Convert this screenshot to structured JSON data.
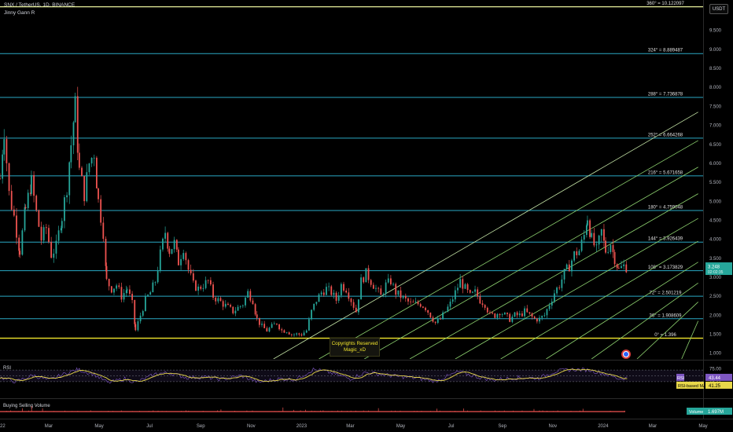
{
  "header": {
    "symbol": "SNX / TetherUS, 1D, BINANCE",
    "indicator": "Jinny Gann R",
    "currency": "USDT"
  },
  "colors": {
    "gann_level": "#2aa8c4",
    "top_level": "#e6ef9b",
    "zero_level": "#f2e52d",
    "fan": "#8fd470",
    "rsi_line": "#7e57c2",
    "rsi_ma": "#e8d84a",
    "volume": "#ef5350",
    "price_tag": "#26a69a"
  },
  "watermark": {
    "line1": "Copyrights Reserved",
    "line2": "Magic_xD"
  },
  "chart_data": [
    {
      "type": "candlestick",
      "title": "SNX / TetherUS, 1D, BINANCE",
      "y_ticks": [
        "10.000",
        "9.500",
        "9.000",
        "8.500",
        "8.000",
        "7.500",
        "7.000",
        "6.500",
        "6.000",
        "5.500",
        "5.000",
        "4.500",
        "4.000",
        "3.500",
        "3.000",
        "2.500",
        "2.000",
        "1.500",
        "1.000"
      ],
      "ylim": [
        0.85,
        10.3
      ],
      "x_ticks": [
        "2022",
        "Mar",
        "May",
        "Jul",
        "Sep",
        "Nov",
        "2023",
        "Mar",
        "May",
        "Jul",
        "Sep",
        "Nov",
        "2024",
        "Mar",
        "May"
      ],
      "xlim": [
        "2022-01-01",
        "2024-05-01"
      ],
      "last_price": "3.248",
      "countdown": "02:02:35",
      "gann_levels": [
        {
          "label": "360° = 10.122097",
          "value": 10.122097
        },
        {
          "label": "324° = 8.889487",
          "value": 8.889487
        },
        {
          "label": "288° = 7.736878",
          "value": 7.736878
        },
        {
          "label": "252° = 6.664268",
          "value": 6.664268
        },
        {
          "label": "216° = 5.671658",
          "value": 5.671658
        },
        {
          "label": "180° = 4.759048",
          "value": 4.759048
        },
        {
          "label": "144° = 3.926439",
          "value": 3.926439
        },
        {
          "label": "108° = 3.173829",
          "value": 3.173829
        },
        {
          "label": "72° = 2.501219",
          "value": 2.501219
        },
        {
          "label": "36° = 1.908609",
          "value": 1.908609
        },
        {
          "label": "0° = 1.396",
          "value": 1.396
        }
      ],
      "close_series": [
        [
          "2022-01-01",
          5.6
        ],
        [
          "2022-01-06",
          6.9
        ],
        [
          "2022-01-12",
          5.2
        ],
        [
          "2022-01-18",
          4.6
        ],
        [
          "2022-01-25",
          3.7
        ],
        [
          "2022-02-01",
          4.8
        ],
        [
          "2022-02-08",
          5.5
        ],
        [
          "2022-02-14",
          4.7
        ],
        [
          "2022-02-20",
          4.0
        ],
        [
          "2022-02-26",
          4.3
        ],
        [
          "2022-03-04",
          3.6
        ],
        [
          "2022-03-10",
          3.8
        ],
        [
          "2022-03-17",
          4.6
        ],
        [
          "2022-03-23",
          5.4
        ],
        [
          "2022-03-28",
          6.5
        ],
        [
          "2022-04-02",
          7.5
        ],
        [
          "2022-04-07",
          5.8
        ],
        [
          "2022-04-13",
          5.2
        ],
        [
          "2022-04-19",
          6.0
        ],
        [
          "2022-04-25",
          6.3
        ],
        [
          "2022-04-30",
          5.0
        ],
        [
          "2022-05-06",
          4.2
        ],
        [
          "2022-05-10",
          2.9
        ],
        [
          "2022-05-16",
          2.7
        ],
        [
          "2022-05-22",
          2.8
        ],
        [
          "2022-05-28",
          2.5
        ],
        [
          "2022-06-04",
          2.7
        ],
        [
          "2022-06-10",
          2.3
        ],
        [
          "2022-06-14",
          1.6
        ],
        [
          "2022-06-20",
          2.0
        ],
        [
          "2022-06-26",
          2.4
        ],
        [
          "2022-07-02",
          2.6
        ],
        [
          "2022-07-08",
          2.9
        ],
        [
          "2022-07-14",
          3.6
        ],
        [
          "2022-07-20",
          4.2
        ],
        [
          "2022-07-25",
          3.7
        ],
        [
          "2022-07-31",
          3.9
        ],
        [
          "2022-08-05",
          3.4
        ],
        [
          "2022-08-11",
          3.8
        ],
        [
          "2022-08-17",
          3.2
        ],
        [
          "2022-08-23",
          2.8
        ],
        [
          "2022-08-29",
          2.7
        ],
        [
          "2022-09-04",
          2.8
        ],
        [
          "2022-09-10",
          2.9
        ],
        [
          "2022-09-16",
          2.5
        ],
        [
          "2022-09-22",
          2.4
        ],
        [
          "2022-09-28",
          2.3
        ],
        [
          "2022-10-04",
          2.2
        ],
        [
          "2022-10-10",
          2.1
        ],
        [
          "2022-10-16",
          2.2
        ],
        [
          "2022-10-22",
          2.3
        ],
        [
          "2022-10-28",
          2.6
        ],
        [
          "2022-11-03",
          2.4
        ],
        [
          "2022-11-08",
          1.9
        ],
        [
          "2022-11-14",
          1.7
        ],
        [
          "2022-11-20",
          1.6
        ],
        [
          "2022-11-26",
          1.7
        ],
        [
          "2022-12-02",
          1.8
        ],
        [
          "2022-12-08",
          1.6
        ],
        [
          "2022-12-14",
          1.6
        ],
        [
          "2022-12-20",
          1.5
        ],
        [
          "2022-12-26",
          1.5
        ],
        [
          "2023-01-01",
          1.5
        ],
        [
          "2023-01-07",
          1.6
        ],
        [
          "2023-01-13",
          2.1
        ],
        [
          "2023-01-19",
          2.4
        ],
        [
          "2023-01-25",
          2.6
        ],
        [
          "2023-01-31",
          2.7
        ],
        [
          "2023-02-06",
          2.6
        ],
        [
          "2023-02-12",
          2.4
        ],
        [
          "2023-02-18",
          2.8
        ],
        [
          "2023-02-24",
          2.7
        ],
        [
          "2023-03-02",
          2.4
        ],
        [
          "2023-03-08",
          2.1
        ],
        [
          "2023-03-14",
          2.9
        ],
        [
          "2023-03-20",
          3.1
        ],
        [
          "2023-03-26",
          2.9
        ],
        [
          "2023-04-01",
          2.7
        ],
        [
          "2023-04-07",
          2.5
        ],
        [
          "2023-04-13",
          2.8
        ],
        [
          "2023-04-19",
          2.9
        ],
        [
          "2023-04-25",
          2.6
        ],
        [
          "2023-05-01",
          2.5
        ],
        [
          "2023-05-07",
          2.4
        ],
        [
          "2023-05-13",
          2.3
        ],
        [
          "2023-05-19",
          2.3
        ],
        [
          "2023-05-25",
          2.3
        ],
        [
          "2023-05-31",
          2.2
        ],
        [
          "2023-06-06",
          2.0
        ],
        [
          "2023-06-12",
          1.8
        ],
        [
          "2023-06-18",
          1.9
        ],
        [
          "2023-06-24",
          2.1
        ],
        [
          "2023-06-30",
          2.3
        ],
        [
          "2023-07-06",
          2.6
        ],
        [
          "2023-07-12",
          2.9
        ],
        [
          "2023-07-18",
          2.7
        ],
        [
          "2023-07-24",
          2.5
        ],
        [
          "2023-07-30",
          2.6
        ],
        [
          "2023-08-05",
          2.4
        ],
        [
          "2023-08-11",
          2.3
        ],
        [
          "2023-08-17",
          2.0
        ],
        [
          "2023-08-23",
          2.0
        ],
        [
          "2023-08-29",
          2.1
        ],
        [
          "2023-09-04",
          2.0
        ],
        [
          "2023-09-10",
          1.9
        ],
        [
          "2023-09-16",
          2.0
        ],
        [
          "2023-09-22",
          2.0
        ],
        [
          "2023-09-28",
          2.1
        ],
        [
          "2023-10-04",
          2.0
        ],
        [
          "2023-10-10",
          1.9
        ],
        [
          "2023-10-16",
          1.9
        ],
        [
          "2023-10-22",
          2.0
        ],
        [
          "2023-10-28",
          2.3
        ],
        [
          "2023-11-03",
          2.6
        ],
        [
          "2023-11-09",
          2.8
        ],
        [
          "2023-11-15",
          3.1
        ],
        [
          "2023-11-21",
          3.3
        ],
        [
          "2023-11-27",
          3.6
        ],
        [
          "2023-12-03",
          3.7
        ],
        [
          "2023-12-09",
          4.1
        ],
        [
          "2023-12-13",
          4.6
        ],
        [
          "2023-12-18",
          4.0
        ],
        [
          "2023-12-24",
          3.7
        ],
        [
          "2023-12-30",
          4.2
        ],
        [
          "2024-01-04",
          3.7
        ],
        [
          "2024-01-10",
          3.9
        ],
        [
          "2024-01-15",
          3.5
        ],
        [
          "2024-01-20",
          3.2
        ],
        [
          "2024-01-26",
          3.3
        ],
        [
          "2024-01-31",
          3.25
        ]
      ],
      "fan_lines": [
        [
          [
            "2022-11-28",
            0.85
          ],
          [
            "2024-04-25",
            7.35
          ]
        ],
        [
          [
            "2023-01-22",
            0.85
          ],
          [
            "2024-04-25",
            6.6
          ]
        ],
        [
          [
            "2023-03-18",
            0.85
          ],
          [
            "2024-04-25",
            5.9
          ]
        ],
        [
          [
            "2023-05-12",
            0.85
          ],
          [
            "2024-04-25",
            5.2
          ]
        ],
        [
          [
            "2023-07-06",
            0.85
          ],
          [
            "2024-04-25",
            4.55
          ]
        ],
        [
          [
            "2023-08-30",
            0.85
          ],
          [
            "2024-04-25",
            3.95
          ]
        ],
        [
          [
            "2023-10-24",
            0.85
          ],
          [
            "2024-04-25",
            3.4
          ]
        ],
        [
          [
            "2023-12-18",
            0.85
          ],
          [
            "2024-04-25",
            2.85
          ]
        ],
        [
          [
            "2024-02-11",
            0.85
          ],
          [
            "2024-04-25",
            2.35
          ]
        ],
        [
          [
            "2024-04-05",
            0.85
          ],
          [
            "2024-04-25",
            1.85
          ]
        ]
      ]
    },
    {
      "type": "line",
      "title": "RSI",
      "series": [
        {
          "name": "RSI",
          "last": "43.44"
        },
        {
          "name": "RSI-based MA",
          "last": "41.25"
        }
      ],
      "y_ticks": [
        "75.00",
        "50.00",
        "25.00"
      ],
      "ylim": [
        0,
        100
      ],
      "rsi_values": [
        [
          "2022-01-01",
          45
        ],
        [
          "2022-01-20",
          30
        ],
        [
          "2022-02-10",
          52
        ],
        [
          "2022-03-01",
          35
        ],
        [
          "2022-03-25",
          62
        ],
        [
          "2022-04-05",
          72
        ],
        [
          "2022-04-25",
          55
        ],
        [
          "2022-05-12",
          26
        ],
        [
          "2022-06-01",
          40
        ],
        [
          "2022-06-15",
          28
        ],
        [
          "2022-07-10",
          58
        ],
        [
          "2022-07-25",
          60
        ],
        [
          "2022-08-15",
          44
        ],
        [
          "2022-09-05",
          46
        ],
        [
          "2022-09-25",
          38
        ],
        [
          "2022-10-20",
          50
        ],
        [
          "2022-11-10",
          28
        ],
        [
          "2022-12-05",
          40
        ],
        [
          "2022-12-25",
          38
        ],
        [
          "2023-01-15",
          72
        ],
        [
          "2023-02-01",
          64
        ],
        [
          "2023-03-01",
          40
        ],
        [
          "2023-03-20",
          62
        ],
        [
          "2023-04-20",
          50
        ],
        [
          "2023-05-20",
          42
        ],
        [
          "2023-06-12",
          32
        ],
        [
          "2023-07-10",
          64
        ],
        [
          "2023-07-30",
          48
        ],
        [
          "2023-08-20",
          36
        ],
        [
          "2023-09-20",
          44
        ],
        [
          "2023-10-15",
          42
        ],
        [
          "2023-11-05",
          66
        ],
        [
          "2023-11-25",
          72
        ],
        [
          "2023-12-15",
          70
        ],
        [
          "2024-01-05",
          55
        ],
        [
          "2024-01-20",
          40
        ],
        [
          "2024-01-31",
          43.44
        ]
      ]
    },
    {
      "type": "bar",
      "title": "Buying Selling Volume",
      "series": [
        {
          "name": "Volume",
          "last": "1.697M"
        }
      ]
    }
  ]
}
